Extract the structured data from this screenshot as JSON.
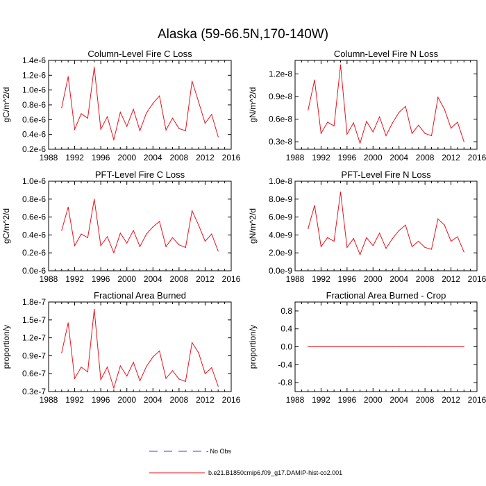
{
  "figure": {
    "title": "Alaska (59-66.5N,170-140W)",
    "legend": [
      {
        "label": "- No Obs",
        "style": "dashed",
        "color": "#4a3fd0"
      },
      {
        "label": "b.e21.B1850cmip6.f09_g17.DAMIP-hist-co2.001",
        "style": "solid",
        "color": "#e8121c"
      }
    ]
  },
  "chart_data": [
    {
      "type": "line",
      "title": "Column-Level Fire C Loss",
      "ylabel": "gC/m^2/d",
      "xlim": [
        1988,
        2016
      ],
      "xticks": [
        1988,
        1992,
        1996,
        2000,
        2004,
        2008,
        2012,
        2016
      ],
      "ylim": [
        2e-07,
        1.4e-06
      ],
      "yticks": [
        2e-07,
        4e-07,
        6e-07,
        8e-07,
        1e-06,
        1.2e-06,
        1.4e-06
      ],
      "yticklabels": [
        "0.2e-6",
        "0.4e-6",
        "0.6e-6",
        "0.8e-6",
        "1.0e-6",
        "1.2e-6",
        "1.4e-6"
      ],
      "series": [
        {
          "color": "#e8121c",
          "x": [
            1990,
            1991,
            1992,
            1993,
            1994,
            1995,
            1996,
            1997,
            1998,
            1999,
            2000,
            2001,
            2002,
            2003,
            2004,
            2005,
            2006,
            2007,
            2008,
            2009,
            2010,
            2011,
            2012,
            2013,
            2014
          ],
          "y": [
            7.6e-07,
            1.18e-06,
            4.7e-07,
            6.8e-07,
            6.2e-07,
            1.31e-06,
            4.7e-07,
            6.4e-07,
            3.3e-07,
            7e-07,
            5.1e-07,
            7.4e-07,
            4.5e-07,
            6.9e-07,
            8.2e-07,
            9.2e-07,
            4.6e-07,
            6.2e-07,
            4.8e-07,
            4.5e-07,
            1.12e-06,
            8.4e-07,
            5.5e-07,
            6.7e-07,
            3.7e-07
          ]
        }
      ]
    },
    {
      "type": "line",
      "title": "Column-Level Fire N Loss",
      "ylabel": "gN/m^2/d",
      "xlim": [
        1988,
        2016
      ],
      "xticks": [
        1988,
        1992,
        1996,
        2000,
        2004,
        2008,
        2012,
        2016
      ],
      "ylim": [
        2e-09,
        1.38e-08
      ],
      "yticks": [
        3e-09,
        6e-09,
        9e-09,
        1.2e-08
      ],
      "yticklabels": [
        "0.3e-8",
        "0.6e-8",
        "0.9e-8",
        "1.2e-8"
      ],
      "series": [
        {
          "color": "#e8121c",
          "x": [
            1990,
            1991,
            1992,
            1993,
            1994,
            1995,
            1996,
            1997,
            1998,
            1999,
            2000,
            2001,
            2002,
            2003,
            2004,
            2005,
            2006,
            2007,
            2008,
            2009,
            2010,
            2011,
            2012,
            2013,
            2014
          ],
          "y": [
            7.2e-09,
            1.12e-08,
            4.1e-09,
            5.6e-09,
            5.1e-09,
            1.32e-08,
            4e-09,
            5.5e-09,
            2.8e-09,
            5.7e-09,
            4.3e-09,
            6.3e-09,
            3.8e-09,
            5.5e-09,
            6.9e-09,
            7.7e-09,
            4.1e-09,
            5.2e-09,
            4.1e-09,
            3.8e-09,
            8.9e-09,
            7.3e-09,
            4.8e-09,
            5.6e-09,
            3e-09
          ]
        }
      ]
    },
    {
      "type": "line",
      "title": "PFT-Level Fire C Loss",
      "ylabel": "gC/m^2/d",
      "xlim": [
        1988,
        2016
      ],
      "xticks": [
        1988,
        1992,
        1996,
        2000,
        2004,
        2008,
        2012,
        2016
      ],
      "ylim": [
        0.0,
        1e-06
      ],
      "yticks": [
        0.0,
        2e-07,
        4e-07,
        6e-07,
        8e-07,
        1e-06
      ],
      "yticklabels": [
        "0.0e-6",
        "0.2e-6",
        "0.4e-6",
        "0.6e-6",
        "0.8e-6",
        "1.0e-6"
      ],
      "series": [
        {
          "color": "#e8121c",
          "x": [
            1990,
            1991,
            1992,
            1993,
            1994,
            1995,
            1996,
            1997,
            1998,
            1999,
            2000,
            2001,
            2002,
            2003,
            2004,
            2005,
            2006,
            2007,
            2008,
            2009,
            2010,
            2011,
            2012,
            2013,
            2014
          ],
          "y": [
            4.5e-07,
            7.1e-07,
            2.8e-07,
            4.1e-07,
            3.7e-07,
            8e-07,
            2.8e-07,
            3.8e-07,
            2e-07,
            4.2e-07,
            3.1e-07,
            4.5e-07,
            2.7e-07,
            4.1e-07,
            4.9e-07,
            5.5e-07,
            2.7e-07,
            3.7e-07,
            2.9e-07,
            2.6e-07,
            6.7e-07,
            5.1e-07,
            3.3e-07,
            4.1e-07,
            2.2e-07
          ]
        }
      ]
    },
    {
      "type": "line",
      "title": "PFT-Level Fire N Loss",
      "ylabel": "gN/m^2/d",
      "xlim": [
        1988,
        2016
      ],
      "xticks": [
        1988,
        1992,
        1996,
        2000,
        2004,
        2008,
        2012,
        2016
      ],
      "ylim": [
        0.0,
        1e-08
      ],
      "yticks": [
        0.0,
        2e-09,
        4e-09,
        6e-09,
        8e-09,
        1e-08
      ],
      "yticklabels": [
        "0.0e-9",
        "2.0e-9",
        "4.0e-9",
        "6.0e-9",
        "8.0e-9",
        "1.0e-8"
      ],
      "series": [
        {
          "color": "#e8121c",
          "x": [
            1990,
            1991,
            1992,
            1993,
            1994,
            1995,
            1996,
            1997,
            1998,
            1999,
            2000,
            2001,
            2002,
            2003,
            2004,
            2005,
            2006,
            2007,
            2008,
            2009,
            2010,
            2011,
            2012,
            2013,
            2014
          ],
          "y": [
            4.7e-09,
            7.3e-09,
            2.7e-09,
            3.7e-09,
            3.3e-09,
            8.8e-09,
            2.6e-09,
            3.6e-09,
            1.8e-09,
            3.7e-09,
            2.8e-09,
            4.2e-09,
            2.5e-09,
            3.6e-09,
            4.5e-09,
            5.1e-09,
            2.7e-09,
            3.3e-09,
            2.6e-09,
            2.4e-09,
            5.8e-09,
            5.1e-09,
            3.3e-09,
            3.8e-09,
            2.1e-09
          ]
        }
      ]
    },
    {
      "type": "line",
      "title": "Fractional Area Burned",
      "ylabel": "proportion/y",
      "xlim": [
        1988,
        2016
      ],
      "xticks": [
        1988,
        1992,
        1996,
        2000,
        2004,
        2008,
        2012,
        2016
      ],
      "ylim": [
        3e-08,
        1.8e-07
      ],
      "yticks": [
        3e-08,
        6e-08,
        9e-08,
        1.2e-07,
        1.5e-07,
        1.8e-07
      ],
      "yticklabels": [
        "0.3e-7",
        "0.6e-7",
        "0.9e-7",
        "1.2e-7",
        "1.5e-7",
        "1.8e-7"
      ],
      "series": [
        {
          "color": "#e8121c",
          "x": [
            1990,
            1991,
            1992,
            1993,
            1994,
            1995,
            1996,
            1997,
            1998,
            1999,
            2000,
            2001,
            2002,
            2003,
            2004,
            2005,
            2006,
            2007,
            2008,
            2009,
            2010,
            2011,
            2012,
            2013,
            2014
          ],
          "y": [
            9.5e-08,
            1.45e-07,
            5.2e-08,
            7.1e-08,
            6.3e-08,
            1.68e-07,
            5e-08,
            7.1e-08,
            3.6e-08,
            7.3e-08,
            5.6e-08,
            7.9e-08,
            4.8e-08,
            7.2e-08,
            8.8e-08,
            9.8e-08,
            5.2e-08,
            6.5e-08,
            5.1e-08,
            4.7e-08,
            1.12e-07,
            9.5e-08,
            6e-08,
            7e-08,
            3.9e-08
          ]
        }
      ]
    },
    {
      "type": "line",
      "title": "Fractional Area Burned - Crop",
      "ylabel": "proportion/y",
      "xlim": [
        1988,
        2016
      ],
      "xticks": [
        1988,
        1992,
        1996,
        2000,
        2004,
        2008,
        2012,
        2016
      ],
      "ylim": [
        -1.0,
        1.0
      ],
      "yticks": [
        -0.8,
        -0.4,
        0.0,
        0.4,
        0.8
      ],
      "yticklabels": [
        "-0.8",
        "-0.4",
        "0.0",
        "0.4",
        "0.8"
      ],
      "series": [
        {
          "color": "#e8121c",
          "x": [
            1990,
            1991,
            1992,
            1993,
            1994,
            1995,
            1996,
            1997,
            1998,
            1999,
            2000,
            2001,
            2002,
            2003,
            2004,
            2005,
            2006,
            2007,
            2008,
            2009,
            2010,
            2011,
            2012,
            2013,
            2014
          ],
          "y": [
            0,
            0,
            0,
            0,
            0,
            0,
            0,
            0,
            0,
            0,
            0,
            0,
            0,
            0,
            0,
            0,
            0,
            0,
            0,
            0,
            0,
            0,
            0,
            0,
            0
          ]
        }
      ]
    }
  ]
}
